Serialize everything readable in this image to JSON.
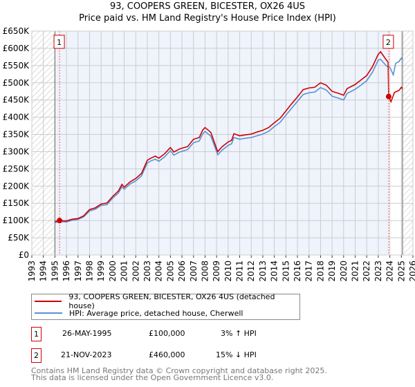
{
  "chart_data": {
    "type": "line",
    "title": "93, COOPERS GREEN, BICESTER, OX26 4US",
    "subtitle": "Price paid vs. HM Land Registry's House Price Index (HPI)",
    "xlim": [
      1993,
      2026
    ],
    "ylim": [
      0,
      650000
    ],
    "x_ticks": [
      "1993",
      "1994",
      "1995",
      "1996",
      "1997",
      "1998",
      "1999",
      "2000",
      "2001",
      "2002",
      "2003",
      "2004",
      "2005",
      "2006",
      "2007",
      "2008",
      "2009",
      "2010",
      "2011",
      "2012",
      "2013",
      "2014",
      "2015",
      "2016",
      "2017",
      "2018",
      "2019",
      "2020",
      "2021",
      "2022",
      "2023",
      "2024",
      "2025",
      "2026"
    ],
    "y_ticks": [
      "£0",
      "£50K",
      "£100K",
      "£150K",
      "£200K",
      "£250K",
      "£300K",
      "£350K",
      "£400K",
      "£450K",
      "£500K",
      "£550K",
      "£600K",
      "£650K"
    ],
    "grid": true,
    "data_range": [
      1995.0,
      2025.1
    ],
    "series": [
      {
        "name": "93, COOPERS GREEN, BICESTER, OX26 4US (detached house)",
        "color": "#cc0000",
        "points": [
          [
            1995.0,
            97000
          ],
          [
            1995.4,
            100000
          ],
          [
            1996,
            99000
          ],
          [
            1996.5,
            104000
          ],
          [
            1997,
            106000
          ],
          [
            1997.5,
            114000
          ],
          [
            1998,
            132000
          ],
          [
            1998.5,
            137000
          ],
          [
            1999,
            148000
          ],
          [
            1999.5,
            151000
          ],
          [
            2000,
            170000
          ],
          [
            2000.5,
            186000
          ],
          [
            2000.8,
            205000
          ],
          [
            2001,
            197000
          ],
          [
            2001.5,
            212000
          ],
          [
            2002,
            222000
          ],
          [
            2002.5,
            237000
          ],
          [
            2003,
            275000
          ],
          [
            2003.3,
            281000
          ],
          [
            2003.7,
            287000
          ],
          [
            2004,
            281000
          ],
          [
            2004.5,
            294000
          ],
          [
            2005,
            312000
          ],
          [
            2005.3,
            299000
          ],
          [
            2005.8,
            308000
          ],
          [
            2006.5,
            315000
          ],
          [
            2007,
            336000
          ],
          [
            2007.5,
            341000
          ],
          [
            2007.8,
            363000
          ],
          [
            2008,
            370000
          ],
          [
            2008.5,
            356000
          ],
          [
            2009,
            309000
          ],
          [
            2009.1,
            300000
          ],
          [
            2009.5,
            315000
          ],
          [
            2010,
            328000
          ],
          [
            2010.3,
            333000
          ],
          [
            2010.5,
            352000
          ],
          [
            2011,
            346000
          ],
          [
            2011.5,
            349000
          ],
          [
            2012,
            351000
          ],
          [
            2012.5,
            357000
          ],
          [
            2013,
            362000
          ],
          [
            2013.5,
            370000
          ],
          [
            2014,
            384000
          ],
          [
            2014.5,
            397000
          ],
          [
            2015,
            418000
          ],
          [
            2015.5,
            439000
          ],
          [
            2016,
            459000
          ],
          [
            2016.5,
            480000
          ],
          [
            2017,
            485000
          ],
          [
            2017.5,
            487000
          ],
          [
            2018,
            500000
          ],
          [
            2018.5,
            493000
          ],
          [
            2019,
            475000
          ],
          [
            2019.5,
            470000
          ],
          [
            2020,
            464000
          ],
          [
            2020.3,
            483000
          ],
          [
            2021,
            495000
          ],
          [
            2021.5,
            508000
          ],
          [
            2022,
            521000
          ],
          [
            2022.5,
            547000
          ],
          [
            2023,
            583000
          ],
          [
            2023.2,
            590000
          ],
          [
            2023.7,
            566000
          ],
          [
            2023.85,
            560000
          ],
          [
            2023.9,
            460000
          ],
          [
            2024.1,
            445000
          ],
          [
            2024.4,
            472000
          ],
          [
            2024.8,
            478000
          ],
          [
            2025.0,
            487000
          ],
          [
            2025.1,
            483000
          ]
        ]
      },
      {
        "name": "HPI: Average price, detached house, Cherwell",
        "color": "#5b8fd1",
        "points": [
          [
            1995.0,
            94000
          ],
          [
            1995.4,
            97000
          ],
          [
            1996,
            96000
          ],
          [
            1996.5,
            101000
          ],
          [
            1997,
            103000
          ],
          [
            1997.5,
            111000
          ],
          [
            1998,
            128000
          ],
          [
            1998.5,
            133000
          ],
          [
            1999,
            144000
          ],
          [
            1999.5,
            146000
          ],
          [
            2000,
            165000
          ],
          [
            2000.5,
            180000
          ],
          [
            2000.8,
            198000
          ],
          [
            2001,
            191000
          ],
          [
            2001.5,
            206000
          ],
          [
            2002,
            215000
          ],
          [
            2002.5,
            230000
          ],
          [
            2003,
            267000
          ],
          [
            2003.3,
            273000
          ],
          [
            2003.7,
            278000
          ],
          [
            2004,
            272000
          ],
          [
            2004.5,
            285000
          ],
          [
            2005,
            303000
          ],
          [
            2005.3,
            290000
          ],
          [
            2005.8,
            299000
          ],
          [
            2006.5,
            306000
          ],
          [
            2007,
            326000
          ],
          [
            2007.5,
            331000
          ],
          [
            2007.8,
            352000
          ],
          [
            2008,
            359000
          ],
          [
            2008.5,
            345000
          ],
          [
            2009,
            300000
          ],
          [
            2009.1,
            291000
          ],
          [
            2009.5,
            305000
          ],
          [
            2010,
            318000
          ],
          [
            2010.3,
            323000
          ],
          [
            2010.5,
            341000
          ],
          [
            2011,
            336000
          ],
          [
            2011.5,
            339000
          ],
          [
            2012,
            341000
          ],
          [
            2012.5,
            346000
          ],
          [
            2013,
            351000
          ],
          [
            2013.5,
            359000
          ],
          [
            2014,
            373000
          ],
          [
            2014.5,
            385000
          ],
          [
            2015,
            406000
          ],
          [
            2015.5,
            426000
          ],
          [
            2016,
            446000
          ],
          [
            2016.5,
            466000
          ],
          [
            2017,
            471000
          ],
          [
            2017.5,
            473000
          ],
          [
            2018,
            486000
          ],
          [
            2018.5,
            479000
          ],
          [
            2019,
            461000
          ],
          [
            2019.5,
            456000
          ],
          [
            2020,
            450000
          ],
          [
            2020.3,
            469000
          ],
          [
            2021,
            481000
          ],
          [
            2021.5,
            493000
          ],
          [
            2022,
            506000
          ],
          [
            2022.5,
            531000
          ],
          [
            2023,
            566000
          ],
          [
            2023.2,
            568000
          ],
          [
            2023.7,
            549000
          ],
          [
            2024,
            545000
          ],
          [
            2024.3,
            523000
          ],
          [
            2024.5,
            556000
          ],
          [
            2024.8,
            562000
          ],
          [
            2025.0,
            572000
          ],
          [
            2025.1,
            568000
          ]
        ]
      }
    ],
    "sales": [
      {
        "label": "1",
        "x": 1995.4,
        "y": 100000
      },
      {
        "label": "2",
        "x": 2023.9,
        "y": 460000
      }
    ]
  },
  "legend": {
    "red": "93, COOPERS GREEN, BICESTER, OX26 4US (detached house)",
    "blue": "HPI: Average price, detached house, Cherwell"
  },
  "transactions": [
    {
      "num": "1",
      "date": "26-MAY-1995",
      "price": "£100,000",
      "hpi": "3% ↑ HPI"
    },
    {
      "num": "2",
      "date": "21-NOV-2023",
      "price": "£460,000",
      "hpi": "15% ↓ HPI"
    }
  ],
  "footer": [
    "Contains HM Land Registry data © Crown copyright and database right 2025.",
    "This data is licensed under the Open Government Licence v3.0."
  ]
}
